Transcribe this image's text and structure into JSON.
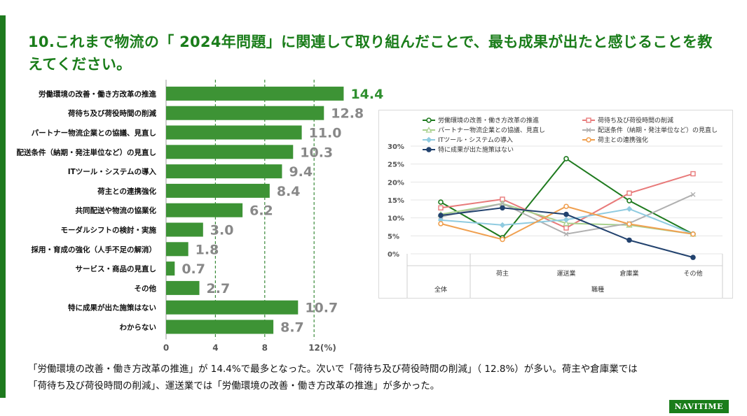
{
  "page": {
    "title": "10.これまで物流の「 2024年問題」に関連して取り組んだことで、最も成果が出たと感じることを教えてください。",
    "summary_line1": "「労働環境の改善・働き方改革の推進」が 14.4%で最多となった。次いで「荷待ち及び荷役時間の削減」（ 12.8%）が多い。荷主や倉庫業では",
    "summary_line2": "「荷待ち及び荷役時間の削減」、運送業では「労働環境の改善・働き方改革の推進」が多かった。",
    "brand": "NAVITIME"
  },
  "chart_data": [
    {
      "type": "bar",
      "orientation": "horizontal",
      "categories": [
        "労働環境の改善・働き方改革の推進",
        "荷待ち及び荷役時間の削減",
        "パートナー物流企業との協議、見直し",
        "配送条件（納期・発注単位など）の見直し",
        "ITツール・システムの導入",
        "荷主との連携強化",
        "共同配送や物流の協業化",
        "モーダルシフトの検討・実施",
        "採用・育成の強化（人手不足の解消）",
        "サービス・商品の見直し",
        "その他",
        "特に成果が出た施策はない",
        "わからない"
      ],
      "values": [
        14.4,
        12.8,
        11.0,
        10.3,
        9.4,
        8.4,
        6.2,
        3.0,
        1.8,
        0.7,
        2.7,
        10.7,
        8.7
      ],
      "value_labels": [
        "14.4",
        "12.8",
        "11.0",
        "10.3",
        "9.4",
        "8.4",
        "6.2",
        "3.0",
        "1.8",
        "0.7",
        "2.7",
        "10.7",
        "8.7"
      ],
      "xticks": [
        "0",
        "4",
        "8",
        "12(%)"
      ],
      "xlim": [
        0,
        16
      ],
      "bar_color": "#3d9335",
      "grid": "dashed vertical"
    },
    {
      "type": "line",
      "categories": [
        "全体",
        "荷主",
        "運送業",
        "倉庫業",
        "その他"
      ],
      "x_group_labels": [
        "全体",
        "職種"
      ],
      "yticks": [
        "30%",
        "25%",
        "20%",
        "15%",
        "10%",
        "5%",
        "0%"
      ],
      "ylim": [
        0,
        30
      ],
      "legend_position": "top",
      "series": [
        {
          "name": "労働環境の改善・働き方改革の推進",
          "color": "#1e7a1e",
          "marker": "circle",
          "values": [
            14.4,
            4.5,
            26.5,
            14.8,
            5.5
          ]
        },
        {
          "name": "荷待ち及び荷役時間の削減",
          "color": "#e87a7a",
          "marker": "square",
          "values": [
            12.8,
            15.2,
            7.2,
            16.9,
            22.3
          ]
        },
        {
          "name": "パートナー物流企業との協議、見直し",
          "color": "#a9d18e",
          "marker": "triangle",
          "values": [
            11.0,
            14.0,
            8.5,
            8.0,
            5.5
          ]
        },
        {
          "name": "配送条件（納期・発注単位など）の見直し",
          "color": "#b0b0b0",
          "marker": "x",
          "values": [
            10.3,
            14.0,
            5.5,
            8.5,
            16.5
          ]
        },
        {
          "name": "ITツール・システムの導入",
          "color": "#8fcbe0",
          "marker": "diamond",
          "values": [
            9.4,
            8.0,
            9.5,
            12.5,
            5.5
          ]
        },
        {
          "name": "荷主との連携強化",
          "color": "#f0a050",
          "marker": "circle",
          "values": [
            8.4,
            4.0,
            13.2,
            8.3,
            5.5
          ]
        },
        {
          "name": "特に成果が出た施策はない",
          "color": "#22426e",
          "marker": "circle",
          "values": [
            10.7,
            12.8,
            11.0,
            3.8,
            -1.0
          ]
        }
      ]
    }
  ]
}
